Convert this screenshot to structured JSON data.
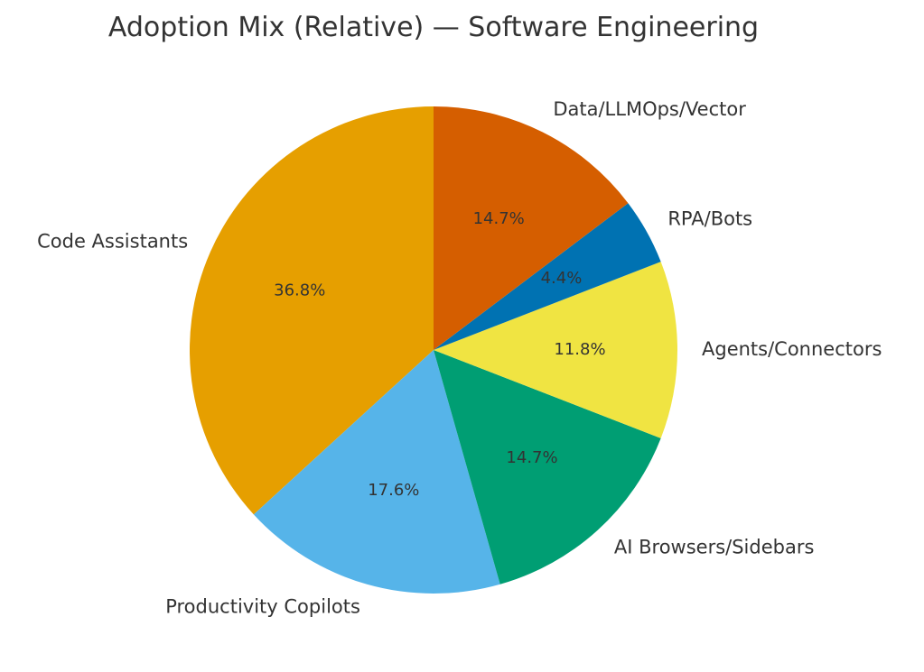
{
  "chart_data": {
    "type": "pie",
    "title": "Adoption Mix (Relative) — Software Engineering",
    "start_angle_deg": 90,
    "direction": "counterclockwise",
    "slices": [
      {
        "label": "Code Assistants",
        "value": 36.8,
        "pct_label": "36.8%",
        "color": "#E69F00"
      },
      {
        "label": "Productivity Copilots",
        "value": 17.6,
        "pct_label": "17.6%",
        "color": "#56B4E9"
      },
      {
        "label": "AI Browsers/Sidebars",
        "value": 14.7,
        "pct_label": "14.7%",
        "color": "#009E73"
      },
      {
        "label": "Agents/Connectors",
        "value": 11.8,
        "pct_label": "11.8%",
        "color": "#F0E442"
      },
      {
        "label": "RPA/Bots",
        "value": 4.4,
        "pct_label": "4.4%",
        "color": "#0072B2"
      },
      {
        "label": "Data/LLMOps/Vector",
        "value": 14.7,
        "pct_label": "14.7%",
        "color": "#D55E00"
      }
    ]
  }
}
